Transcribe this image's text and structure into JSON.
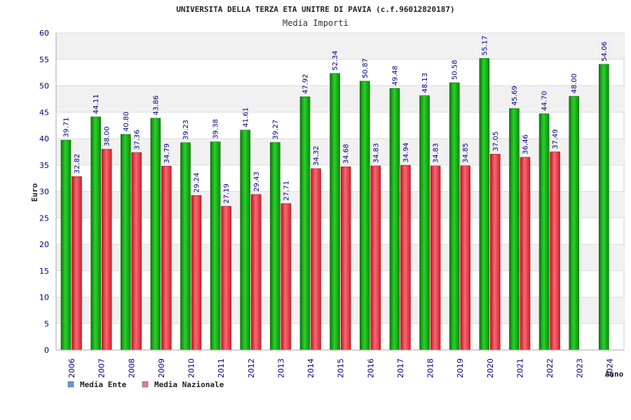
{
  "chart_data": {
    "type": "bar",
    "title": "UNIVERSITA DELLA TERZA ETA UNITRE DI PAVIA (c.f.96012820187)",
    "subtitle": "Media Importi",
    "xlabel": "Anno",
    "ylabel": "Euro",
    "ylim": [
      0,
      60
    ],
    "ytick_step": 5,
    "grid": true,
    "legend_position": "bottom-left",
    "categories": [
      "2006",
      "2007",
      "2008",
      "2009",
      "2010",
      "2011",
      "2012",
      "2013",
      "2014",
      "2015",
      "2016",
      "2017",
      "2018",
      "2019",
      "2020",
      "2021",
      "2022",
      "2023",
      "2024"
    ],
    "series": [
      {
        "name": "Media Ente",
        "color": "#1aa31a",
        "legend_color": "#6699dd",
        "values": [
          39.71,
          44.11,
          40.8,
          43.86,
          39.23,
          39.38,
          41.61,
          39.27,
          47.92,
          52.34,
          50.87,
          49.48,
          48.13,
          50.58,
          55.17,
          45.69,
          44.7,
          48.0,
          54.06
        ],
        "labels": [
          "39.71",
          "44.11",
          "40.80",
          "43.86",
          "39.23",
          "39.38",
          "41.61",
          "39.27",
          "47.92",
          "52.34",
          "50.87",
          "49.48",
          "48.13",
          "50.58",
          "55.17",
          "45.69",
          "44.70",
          "48.00",
          "54.06"
        ]
      },
      {
        "name": "Media Nazionale",
        "color": "#e02030",
        "legend_color": "#dd77aa",
        "values": [
          32.82,
          38.0,
          37.36,
          34.79,
          29.24,
          27.19,
          29.43,
          27.71,
          34.32,
          34.68,
          34.83,
          34.94,
          34.83,
          34.85,
          37.05,
          36.46,
          37.49,
          null,
          null
        ],
        "labels": [
          "32.82",
          "38.00",
          "37.36",
          "34.79",
          "29.24",
          "27.19",
          "29.43",
          "27.71",
          "34.32",
          "34.68",
          "34.83",
          "34.94",
          "34.83",
          "34.85",
          "37.05",
          "36.46",
          "37.49",
          null,
          null
        ]
      }
    ]
  }
}
